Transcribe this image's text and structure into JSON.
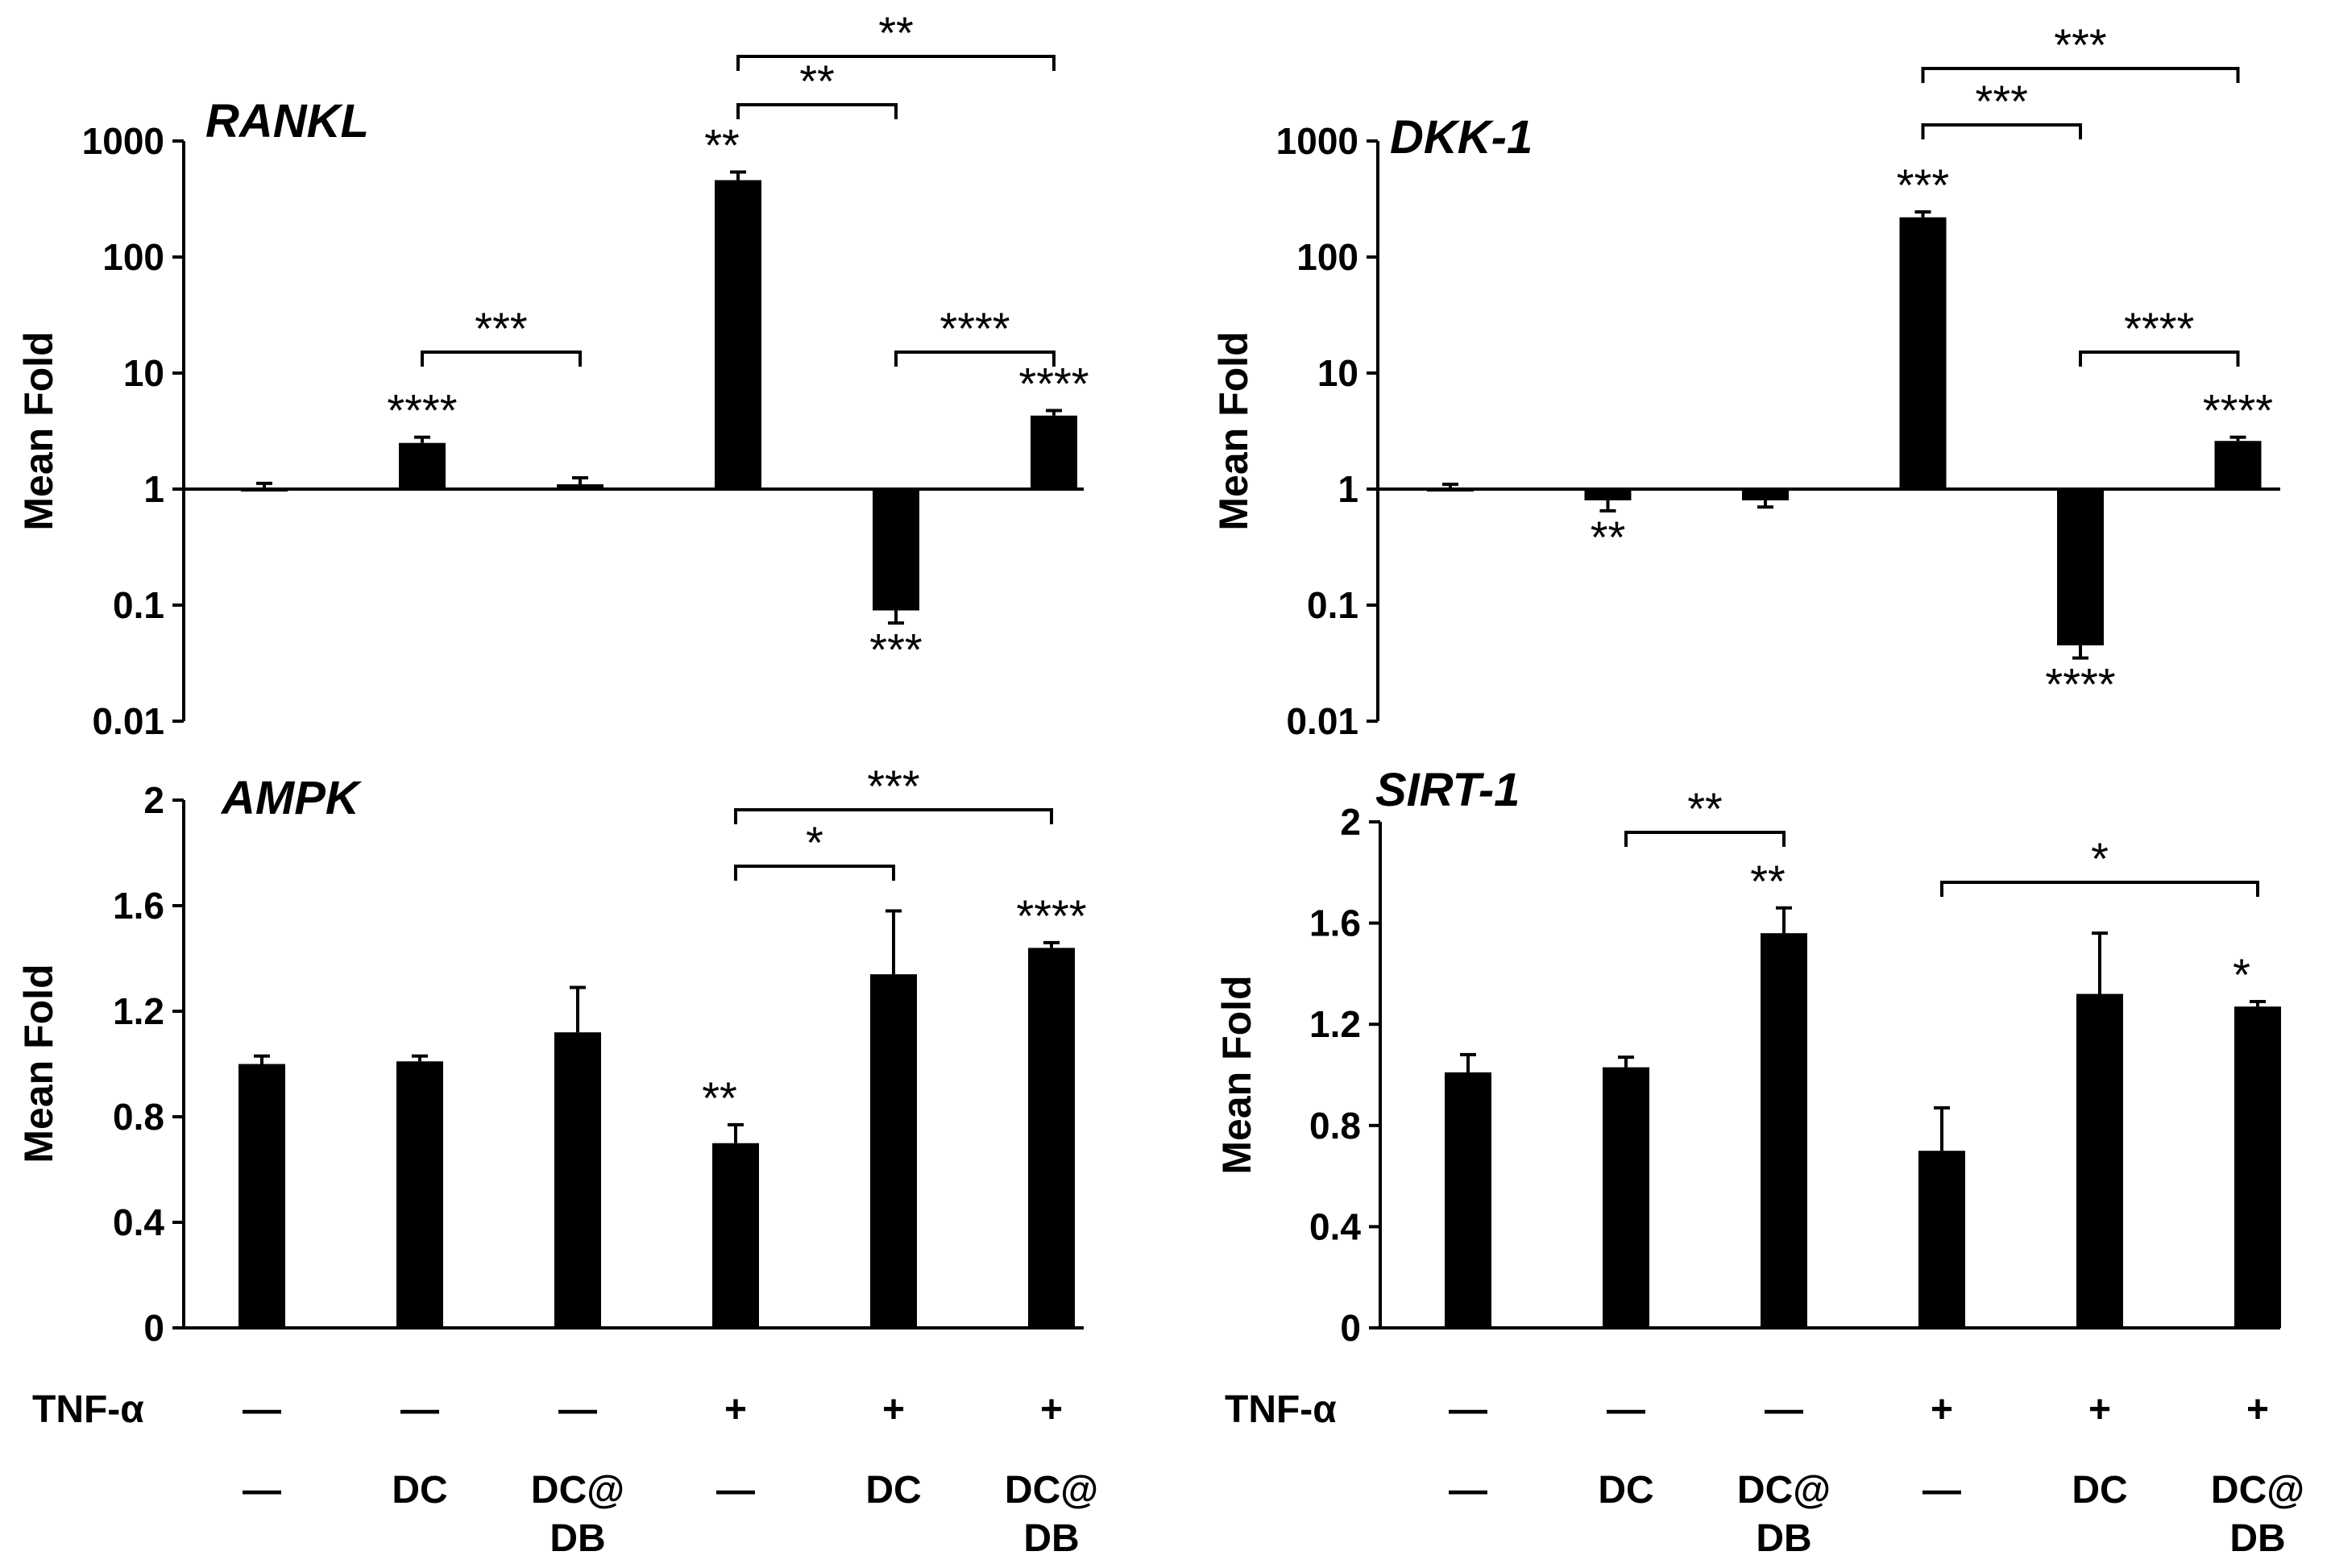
{
  "chart_data": [
    {
      "type": "bar",
      "title": "RANKL",
      "ylabel": "Mean Fold",
      "yscale": "log",
      "ylim": [
        0.01,
        1000
      ],
      "yticks": [
        "0.01",
        "0.1",
        "1",
        "10",
        "100",
        "1000"
      ],
      "values": [
        1.0,
        2.5,
        1.1,
        460,
        0.09,
        4.3
      ],
      "errors": [
        0.12,
        0.3,
        0.15,
        80,
        0.02,
        0.45
      ],
      "bar_labels": [
        "",
        "****",
        "",
        "**",
        "***",
        "****"
      ],
      "brackets": [
        {
          "from": 1,
          "to": 2,
          "label": "***"
        },
        {
          "from": 4,
          "to": 5,
          "label": "****"
        },
        {
          "from": 3,
          "to": 4,
          "label": "**"
        },
        {
          "from": 3,
          "to": 5,
          "label": "**"
        }
      ]
    },
    {
      "type": "bar",
      "title": "DKK-1",
      "ylabel": "Mean Fold",
      "yscale": "log",
      "ylim": [
        0.01,
        1000
      ],
      "yticks": [
        "0.01",
        "0.1",
        "1",
        "10",
        "100",
        "1000"
      ],
      "values": [
        1.0,
        0.8,
        0.8,
        220,
        0.045,
        2.6
      ],
      "errors": [
        0.1,
        0.15,
        0.1,
        25,
        0.01,
        0.2
      ],
      "bar_labels": [
        "",
        "**",
        "",
        "***",
        "****",
        "****"
      ],
      "brackets": [
        {
          "from": 4,
          "to": 5,
          "label": "****"
        },
        {
          "from": 3,
          "to": 4,
          "label": "***"
        },
        {
          "from": 3,
          "to": 5,
          "label": "***"
        }
      ]
    },
    {
      "type": "bar",
      "title": "AMPK",
      "ylabel": "Mean Fold",
      "yscale": "linear",
      "ylim": [
        0,
        2
      ],
      "yticks": [
        "0",
        "0.4",
        "0.8",
        "1.2",
        "1.6",
        "2"
      ],
      "values": [
        1.0,
        1.01,
        1.12,
        0.7,
        1.34,
        1.44
      ],
      "errors": [
        0.03,
        0.02,
        0.17,
        0.07,
        0.24,
        0.02
      ],
      "bar_labels": [
        "",
        "",
        "",
        "**",
        "",
        "****"
      ],
      "brackets": [
        {
          "from": 3,
          "to": 4,
          "label": "*"
        },
        {
          "from": 3,
          "to": 5,
          "label": "***"
        }
      ]
    },
    {
      "type": "bar",
      "title": "SIRT-1",
      "ylabel": "Mean Fold",
      "yscale": "linear",
      "ylim": [
        0,
        2
      ],
      "yticks": [
        "0",
        "0.4",
        "0.8",
        "1.2",
        "1.6",
        "2"
      ],
      "values": [
        1.01,
        1.03,
        1.56,
        0.7,
        1.32,
        1.27
      ],
      "errors": [
        0.07,
        0.04,
        0.1,
        0.17,
        0.24,
        0.02
      ],
      "bar_labels": [
        "",
        "",
        "**",
        "",
        "",
        "*"
      ],
      "brackets": [
        {
          "from": 1,
          "to": 2,
          "label": "**"
        },
        {
          "from": 3,
          "to": 5,
          "label": "*"
        }
      ]
    }
  ],
  "conditions": {
    "tnf_label": "TNF-α",
    "tnf": [
      "—",
      "—",
      "—",
      "+",
      "+",
      "+"
    ],
    "treatment_line1": [
      "—",
      "DC",
      "DC@",
      "—",
      "DC",
      "DC@"
    ],
    "treatment_line2": [
      "",
      "",
      "DB",
      "",
      "",
      "DB"
    ]
  }
}
